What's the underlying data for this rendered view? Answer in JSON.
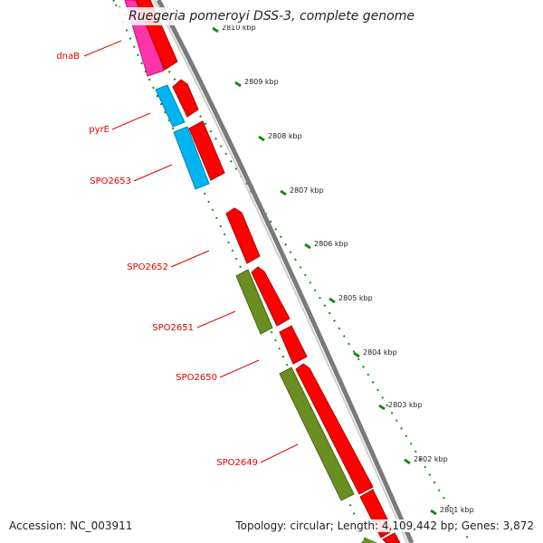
{
  "title": "Ruegeria pomeroyi DSS-3, complete genome",
  "footer": {
    "accession": "Accession: NC_003911",
    "summary": "Topology: circular; Length: 4,109,442 bp; Genes: 3,872"
  },
  "colors": {
    "cds": "#ff0000",
    "backbone": "#888888",
    "tick": "#1a8a1a",
    "gene_label": "#e00000",
    "pink_feature": "#ff33aa",
    "cyan_feature": "#00b4f0",
    "olive_feature": "#6b8e23"
  },
  "ticks": [
    {
      "label": "2810 kbp"
    },
    {
      "label": "2809 kbp"
    },
    {
      "label": "2808 kbp"
    },
    {
      "label": "2807 kbp"
    },
    {
      "label": "2806 kbp"
    },
    {
      "label": "2805 kbp"
    },
    {
      "label": "2804 kbp"
    },
    {
      "label": "2803 kbp"
    },
    {
      "label": "2802 kbp"
    },
    {
      "label": "2801 kbp"
    }
  ],
  "genes": [
    {
      "label": "dnaB",
      "color": "pink_feature"
    },
    {
      "label": "pyrE",
      "color": "cyan_feature"
    },
    {
      "label": "SPO2653",
      "color": "cyan_feature"
    },
    {
      "label": "SPO2652",
      "color": "cds"
    },
    {
      "label": "SPO2651",
      "color": "olive_feature"
    },
    {
      "label": "SPO2650",
      "color": "cds"
    },
    {
      "label": "SPO2649",
      "color": "olive_feature"
    }
  ]
}
